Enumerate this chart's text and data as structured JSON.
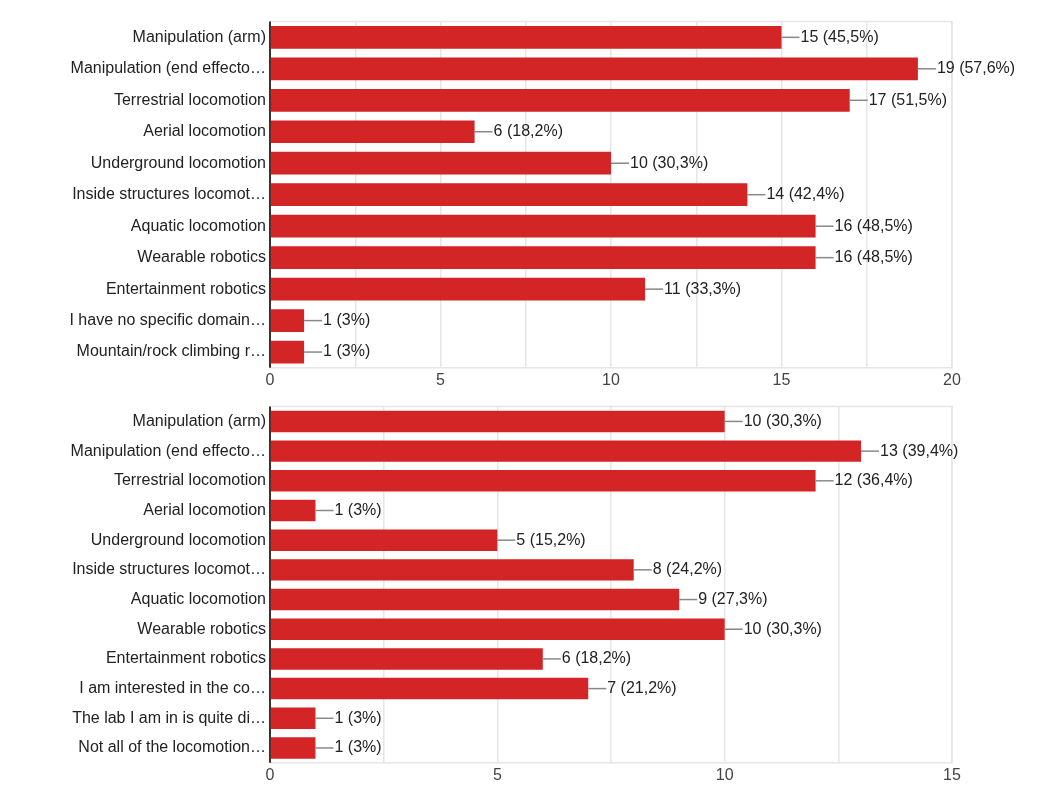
{
  "chart_data": [
    {
      "type": "bar",
      "orientation": "horizontal",
      "categories": [
        "Manipulation (arm)",
        "Manipulation (end effecto…",
        "Terrestrial locomotion",
        "Aerial locomotion",
        "Underground locomotion",
        "Inside structures locomot…",
        "Aquatic locomotion",
        "Wearable robotics",
        "Entertainment robotics",
        "I have no specific domain…",
        "Mountain/rock climbing r…"
      ],
      "values": [
        15,
        19,
        17,
        6,
        10,
        14,
        16,
        16,
        11,
        1,
        1
      ],
      "value_labels": [
        "15 (45,5%)",
        "19 (57,6%)",
        "17 (51,5%)",
        "6 (18,2%)",
        "10 (30,3%)",
        "14 (42,4%)",
        "16 (48,5%)",
        "16 (48,5%)",
        "11 (33,3%)",
        "1 (3%)",
        "1 (3%)"
      ],
      "color": "#d32525",
      "xlim": [
        0,
        20
      ],
      "xticks": [
        0,
        {
          "value": 2.5,
          "label": null
        },
        5,
        {
          "value": 7.5,
          "label": null
        },
        10,
        {
          "value": 12.5,
          "label": null
        },
        15,
        {
          "value": 17.5,
          "label": null
        },
        20
      ],
      "grid": "x",
      "legend": false
    },
    {
      "type": "bar",
      "orientation": "horizontal",
      "categories": [
        "Manipulation (arm)",
        "Manipulation (end effecto…",
        "Terrestrial locomotion",
        "Aerial locomotion",
        "Underground locomotion",
        "Inside structures locomot…",
        "Aquatic locomotion",
        "Wearable robotics",
        "Entertainment robotics",
        "I am interested in the co…",
        "The lab I am in is quite di…",
        "Not all of the locomotion…"
      ],
      "values": [
        10,
        13,
        12,
        1,
        5,
        8,
        9,
        10,
        6,
        7,
        1,
        1
      ],
      "value_labels": [
        "10 (30,3%)",
        "13 (39,4%)",
        "12 (36,4%)",
        "1 (3%)",
        "5 (15,2%)",
        "8 (24,2%)",
        "9 (27,3%)",
        "10 (30,3%)",
        "6 (18,2%)",
        "7 (21,2%)",
        "1 (3%)",
        "1 (3%)"
      ],
      "color": "#d32525",
      "xlim": [
        0,
        15
      ],
      "xticks": [
        0,
        {
          "value": 2.5,
          "label": null
        },
        5,
        {
          "value": 7.5,
          "label": null
        },
        10,
        {
          "value": 12.5,
          "label": null
        },
        15
      ],
      "grid": "x",
      "legend": false
    }
  ]
}
